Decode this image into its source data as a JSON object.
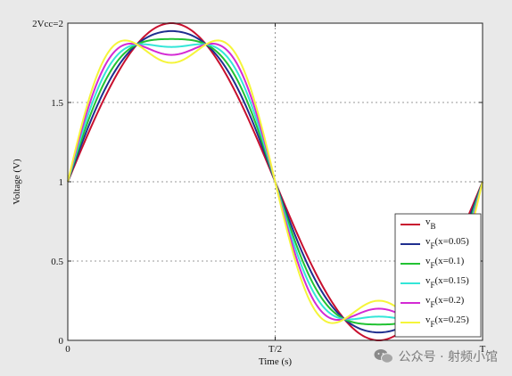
{
  "chart_data": {
    "type": "line",
    "xlabel": "Time (s)",
    "ylabel": "Voltage (V)",
    "ylim": [
      0,
      2
    ],
    "xlim": [
      0,
      1
    ],
    "x_ticks": [
      {
        "value": 0,
        "label": "0"
      },
      {
        "value": 0.5,
        "label": "T/2"
      },
      {
        "value": 1,
        "label": "T"
      }
    ],
    "y_ticks": [
      {
        "value": 0,
        "label": "0"
      },
      {
        "value": 0.5,
        "label": "0.5"
      },
      {
        "value": 1,
        "label": "1"
      },
      {
        "value": 1.5,
        "label": "1.5"
      },
      {
        "value": 2,
        "label": "2Vcc=2"
      }
    ],
    "grid": true,
    "legend_position": "bottom-right",
    "waveform": "v(t) = 1 + sin(2πt) + x·sin(6πt)",
    "series": [
      {
        "name": "vB",
        "label_main": "v",
        "label_sub": "B",
        "x": 0,
        "color": "#c8102e"
      },
      {
        "name": "vF(x=0.05)",
        "label_main": "v",
        "label_sub": "F",
        "label_tail": "(x=0.05)",
        "x": 0.05,
        "color": "#1f2f8f"
      },
      {
        "name": "vF(x=0.1)",
        "label_main": "v",
        "label_sub": "F",
        "label_tail": "(x=0.1)",
        "x": 0.1,
        "color": "#22c233"
      },
      {
        "name": "vF(x=0.15)",
        "label_main": "v",
        "label_sub": "F",
        "label_tail": "(x=0.15)",
        "x": 0.15,
        "color": "#33e6d8"
      },
      {
        "name": "vF(x=0.2)",
        "label_main": "v",
        "label_sub": "F",
        "label_tail": "(x=0.2)",
        "x": 0.2,
        "color": "#d42ad4"
      },
      {
        "name": "vF(x=0.25)",
        "label_main": "v",
        "label_sub": "F",
        "label_tail": "(x=0.25)",
        "x": 0.25,
        "color": "#f5f53a"
      }
    ]
  },
  "watermark": {
    "text": "公众号 · 射频小馆",
    "icon": "wechat-logo-icon"
  }
}
